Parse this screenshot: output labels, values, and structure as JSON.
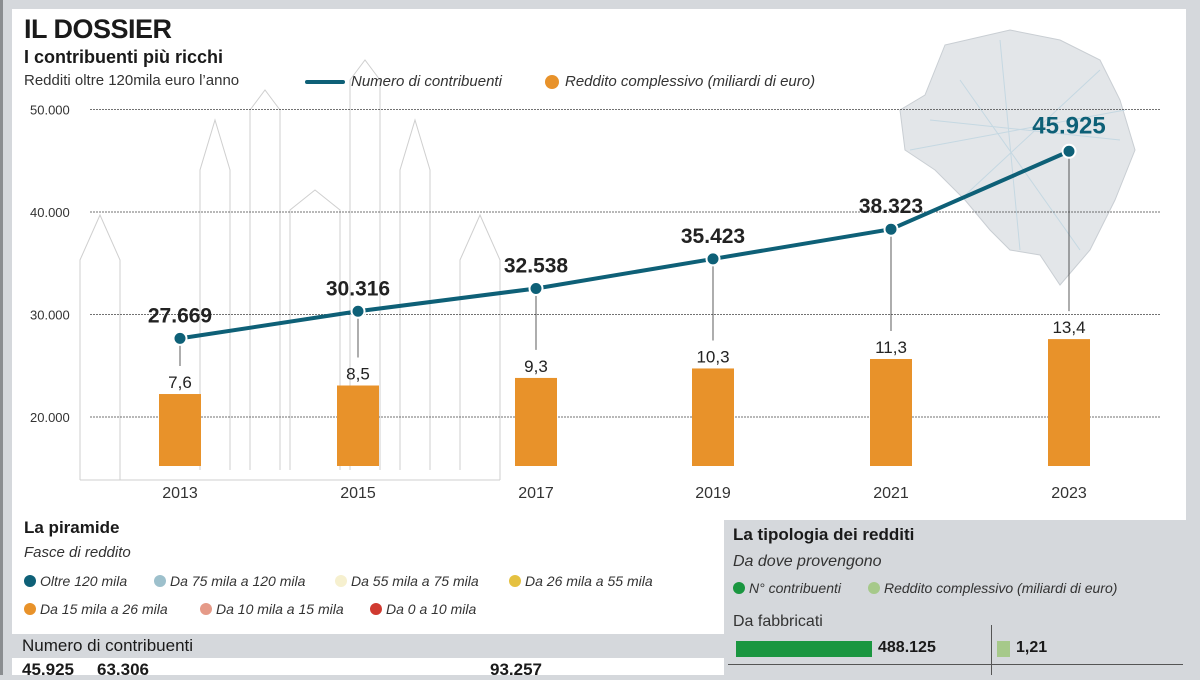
{
  "header": {
    "kicker": "IL DOSSIER",
    "title": "I contribuenti più ricchi",
    "subtitle": "Redditi oltre  120mila euro l’anno"
  },
  "chart_data": {
    "type": "line+bar",
    "categories": [
      "2013",
      "2015",
      "2017",
      "2019",
      "2021",
      "2023"
    ],
    "series": [
      {
        "name": "Numero di contribuenti",
        "type": "line",
        "color": "#0e6077",
        "values": [
          27669,
          30316,
          32538,
          35423,
          38323,
          45925
        ],
        "labels": [
          "27.669",
          "30.316",
          "32.538",
          "35.423",
          "38.323",
          "45.925"
        ]
      },
      {
        "name": "Reddito complessivo (miliardi di euro)",
        "type": "bar",
        "color": "#e8922a",
        "values": [
          7.6,
          8.5,
          9.3,
          10.3,
          11.3,
          13.4
        ],
        "labels": [
          "7,6",
          "8,5",
          "9,3",
          "10,3",
          "11,3",
          "13,4"
        ]
      }
    ],
    "yticks": [
      "50.000",
      "40.000",
      "30.000",
      "20.000"
    ],
    "ylim": [
      20000,
      50000
    ],
    "grid": true,
    "legend": "top"
  },
  "piramide": {
    "title": "La piramide",
    "subtitle": "Fasce di reddito",
    "legend": [
      {
        "label": "Oltre 120 mila",
        "color": "#0e6077"
      },
      {
        "label": "Da 75 mila  a 120 mila",
        "color": "#9dc0cc"
      },
      {
        "label": "Da 55 mila a 75 mila",
        "color": "#f6f0cf"
      },
      {
        "label": "Da 26 mila a 55 mila",
        "color": "#e5c140"
      },
      {
        "label": "Da 15 mila a 26 mila",
        "color": "#e8922a"
      },
      {
        "label": "Da 10 mila a 15 mila",
        "color": "#e59a88"
      },
      {
        "label": "Da 0 a 10 mila",
        "color": "#d03a30"
      }
    ],
    "numero_title": "Numero di contribuenti",
    "numbers": [
      "45.925",
      "63.306",
      "93.257"
    ]
  },
  "tipologia": {
    "title": "La tipologia dei redditi",
    "subtitle": "Da dove provengono",
    "legend": [
      {
        "label": "N° contribuenti",
        "color": "#1a9640"
      },
      {
        "label": "Reddito complessivo (miliardi di euro)",
        "color": "#a6c98a"
      }
    ],
    "rows": [
      {
        "label": "Da fabbricati",
        "contribuenti": "488.125",
        "reddito": "1,21"
      }
    ]
  }
}
